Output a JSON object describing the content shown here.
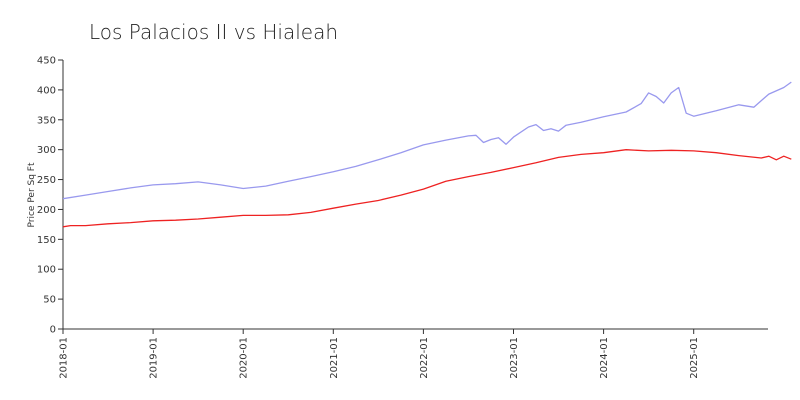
{
  "chart_data": {
    "type": "line",
    "title": "Los Palacios II vs Hialeah",
    "xlabel": "",
    "ylabel": "Price Per Sq Ft",
    "ylim": [
      0,
      450
    ],
    "yticks": [
      0,
      50,
      100,
      150,
      200,
      250,
      300,
      350,
      400,
      450
    ],
    "xlim": [
      "2018-01",
      "2025-11"
    ],
    "xticks": [
      "2018-01",
      "2019-01",
      "2020-01",
      "2021-01",
      "2022-01",
      "2023-01",
      "2024-01",
      "2025-01"
    ],
    "grid": false,
    "legend": "none",
    "series": [
      {
        "color": "#9999ee",
        "points": [
          [
            "2018-01",
            218
          ],
          [
            "2018-04",
            224
          ],
          [
            "2018-07",
            230
          ],
          [
            "2018-10",
            236
          ],
          [
            "2019-01",
            241
          ],
          [
            "2019-04",
            243
          ],
          [
            "2019-07",
            246
          ],
          [
            "2019-10",
            241
          ],
          [
            "2020-01",
            235
          ],
          [
            "2020-04",
            239
          ],
          [
            "2020-07",
            247
          ],
          [
            "2020-10",
            255
          ],
          [
            "2021-01",
            263
          ],
          [
            "2021-04",
            272
          ],
          [
            "2021-07",
            283
          ],
          [
            "2021-10",
            295
          ],
          [
            "2022-01",
            308
          ],
          [
            "2022-04",
            316
          ],
          [
            "2022-07",
            323
          ],
          [
            "2022-08",
            324
          ],
          [
            "2022-09",
            312
          ],
          [
            "2022-10",
            317
          ],
          [
            "2022-11",
            320
          ],
          [
            "2022-12",
            309
          ],
          [
            "2023-01",
            321
          ],
          [
            "2023-03",
            338
          ],
          [
            "2023-04",
            342
          ],
          [
            "2023-05",
            332
          ],
          [
            "2023-06",
            335
          ],
          [
            "2023-07",
            331
          ],
          [
            "2023-08",
            341
          ],
          [
            "2023-10",
            346
          ],
          [
            "2024-01",
            355
          ],
          [
            "2024-04",
            363
          ],
          [
            "2024-06",
            377
          ],
          [
            "2024-07",
            395
          ],
          [
            "2024-08",
            389
          ],
          [
            "2024-09",
            378
          ],
          [
            "2024-10",
            395
          ],
          [
            "2024-11",
            404
          ],
          [
            "2024-12",
            361
          ],
          [
            "2025-01",
            356
          ],
          [
            "2025-04",
            365
          ],
          [
            "2025-07",
            375
          ],
          [
            "2025-09",
            371
          ],
          [
            "2025-11",
            393
          ],
          [
            "2026-01",
            404
          ],
          [
            "2026-02",
            413
          ]
        ]
      },
      {
        "color": "#ee2222",
        "points": [
          [
            "2018-01",
            171
          ],
          [
            "2018-02",
            173
          ],
          [
            "2018-04",
            173
          ],
          [
            "2018-07",
            176
          ],
          [
            "2018-10",
            178
          ],
          [
            "2019-01",
            181
          ],
          [
            "2019-04",
            182
          ],
          [
            "2019-07",
            184
          ],
          [
            "2019-10",
            187
          ],
          [
            "2020-01",
            190
          ],
          [
            "2020-04",
            190
          ],
          [
            "2020-07",
            191
          ],
          [
            "2020-10",
            195
          ],
          [
            "2021-01",
            202
          ],
          [
            "2021-04",
            209
          ],
          [
            "2021-07",
            215
          ],
          [
            "2021-10",
            224
          ],
          [
            "2022-01",
            234
          ],
          [
            "2022-04",
            247
          ],
          [
            "2022-07",
            255
          ],
          [
            "2022-10",
            262
          ],
          [
            "2023-01",
            270
          ],
          [
            "2023-04",
            278
          ],
          [
            "2023-07",
            287
          ],
          [
            "2023-10",
            292
          ],
          [
            "2024-01",
            295
          ],
          [
            "2024-04",
            300
          ],
          [
            "2024-07",
            298
          ],
          [
            "2024-10",
            299
          ],
          [
            "2025-01",
            298
          ],
          [
            "2025-04",
            295
          ],
          [
            "2025-07",
            290
          ],
          [
            "2025-10",
            286
          ],
          [
            "2025-11",
            289
          ],
          [
            "2025-12",
            283
          ],
          [
            "2026-01",
            289
          ],
          [
            "2026-02",
            284
          ]
        ]
      }
    ]
  }
}
